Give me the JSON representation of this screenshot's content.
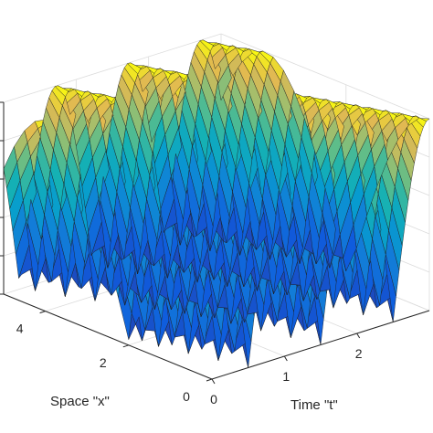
{
  "chart_data": {
    "type": "surface",
    "title": "",
    "xlabel": "Time \"t\"",
    "ylabel": "Space \"x\"",
    "zlabel": "",
    "x_ticks": [
      "0",
      "1",
      "2"
    ],
    "y_ticks": [
      "0",
      "2",
      "4"
    ],
    "xlim": [
      0,
      3
    ],
    "ylim": [
      0,
      5
    ],
    "zlim": [
      0,
      1
    ],
    "colormap": "parula",
    "grid": true,
    "surface": {
      "description": "z = |cos(pi * t + 0.8 * x)| evaluated on a grid",
      "t_range": [
        0,
        3
      ],
      "x_range": [
        0,
        5
      ],
      "t_steps": 72,
      "x_steps": 20
    }
  }
}
